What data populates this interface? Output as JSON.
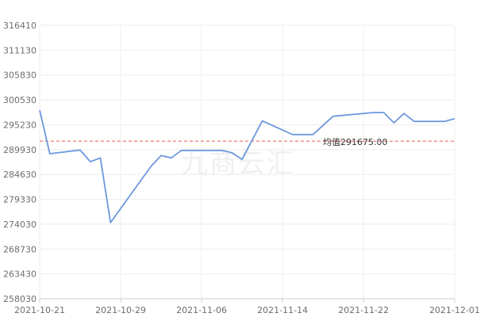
{
  "watermark": "九商云汇",
  "chart_data": {
    "type": "line",
    "ylim": [
      258030,
      316410
    ],
    "y_ticks": [
      "316410",
      "311130",
      "305830",
      "300530",
      "295230",
      "289930",
      "284630",
      "279330",
      "274030",
      "268730",
      "263430",
      "258030"
    ],
    "x_ticks": [
      "2021-10-21",
      "2021-10-29",
      "2021-11-06",
      "2021-11-14",
      "2021-11-22",
      "2021-12-01"
    ],
    "x_tick_days": [
      0,
      8,
      16,
      24,
      32,
      41
    ],
    "grid": true,
    "line_color": "#6d98de",
    "mean_line": {
      "value": 291675,
      "label": "均值291675.00",
      "color": "#e8564f"
    },
    "series": [
      {
        "x": [
          "2021-10-21",
          "2021-10-22",
          "2021-10-25",
          "2021-10-26",
          "2021-10-27",
          "2021-10-28",
          "2021-11-01",
          "2021-11-02",
          "2021-11-03",
          "2021-11-04",
          "2021-11-08",
          "2021-11-09",
          "2021-11-10",
          "2021-11-12",
          "2021-11-15",
          "2021-11-17",
          "2021-11-19",
          "2021-11-23",
          "2021-11-24",
          "2021-11-25",
          "2021-11-26",
          "2021-11-27",
          "2021-11-30",
          "2021-12-01"
        ],
        "values": [
          298300,
          289000,
          289800,
          287300,
          288100,
          274300,
          286300,
          288600,
          288100,
          289700,
          289700,
          289200,
          287800,
          296000,
          293100,
          293100,
          297000,
          297800,
          297800,
          295600,
          297600,
          295900,
          295900,
          296500
        ]
      }
    ]
  }
}
